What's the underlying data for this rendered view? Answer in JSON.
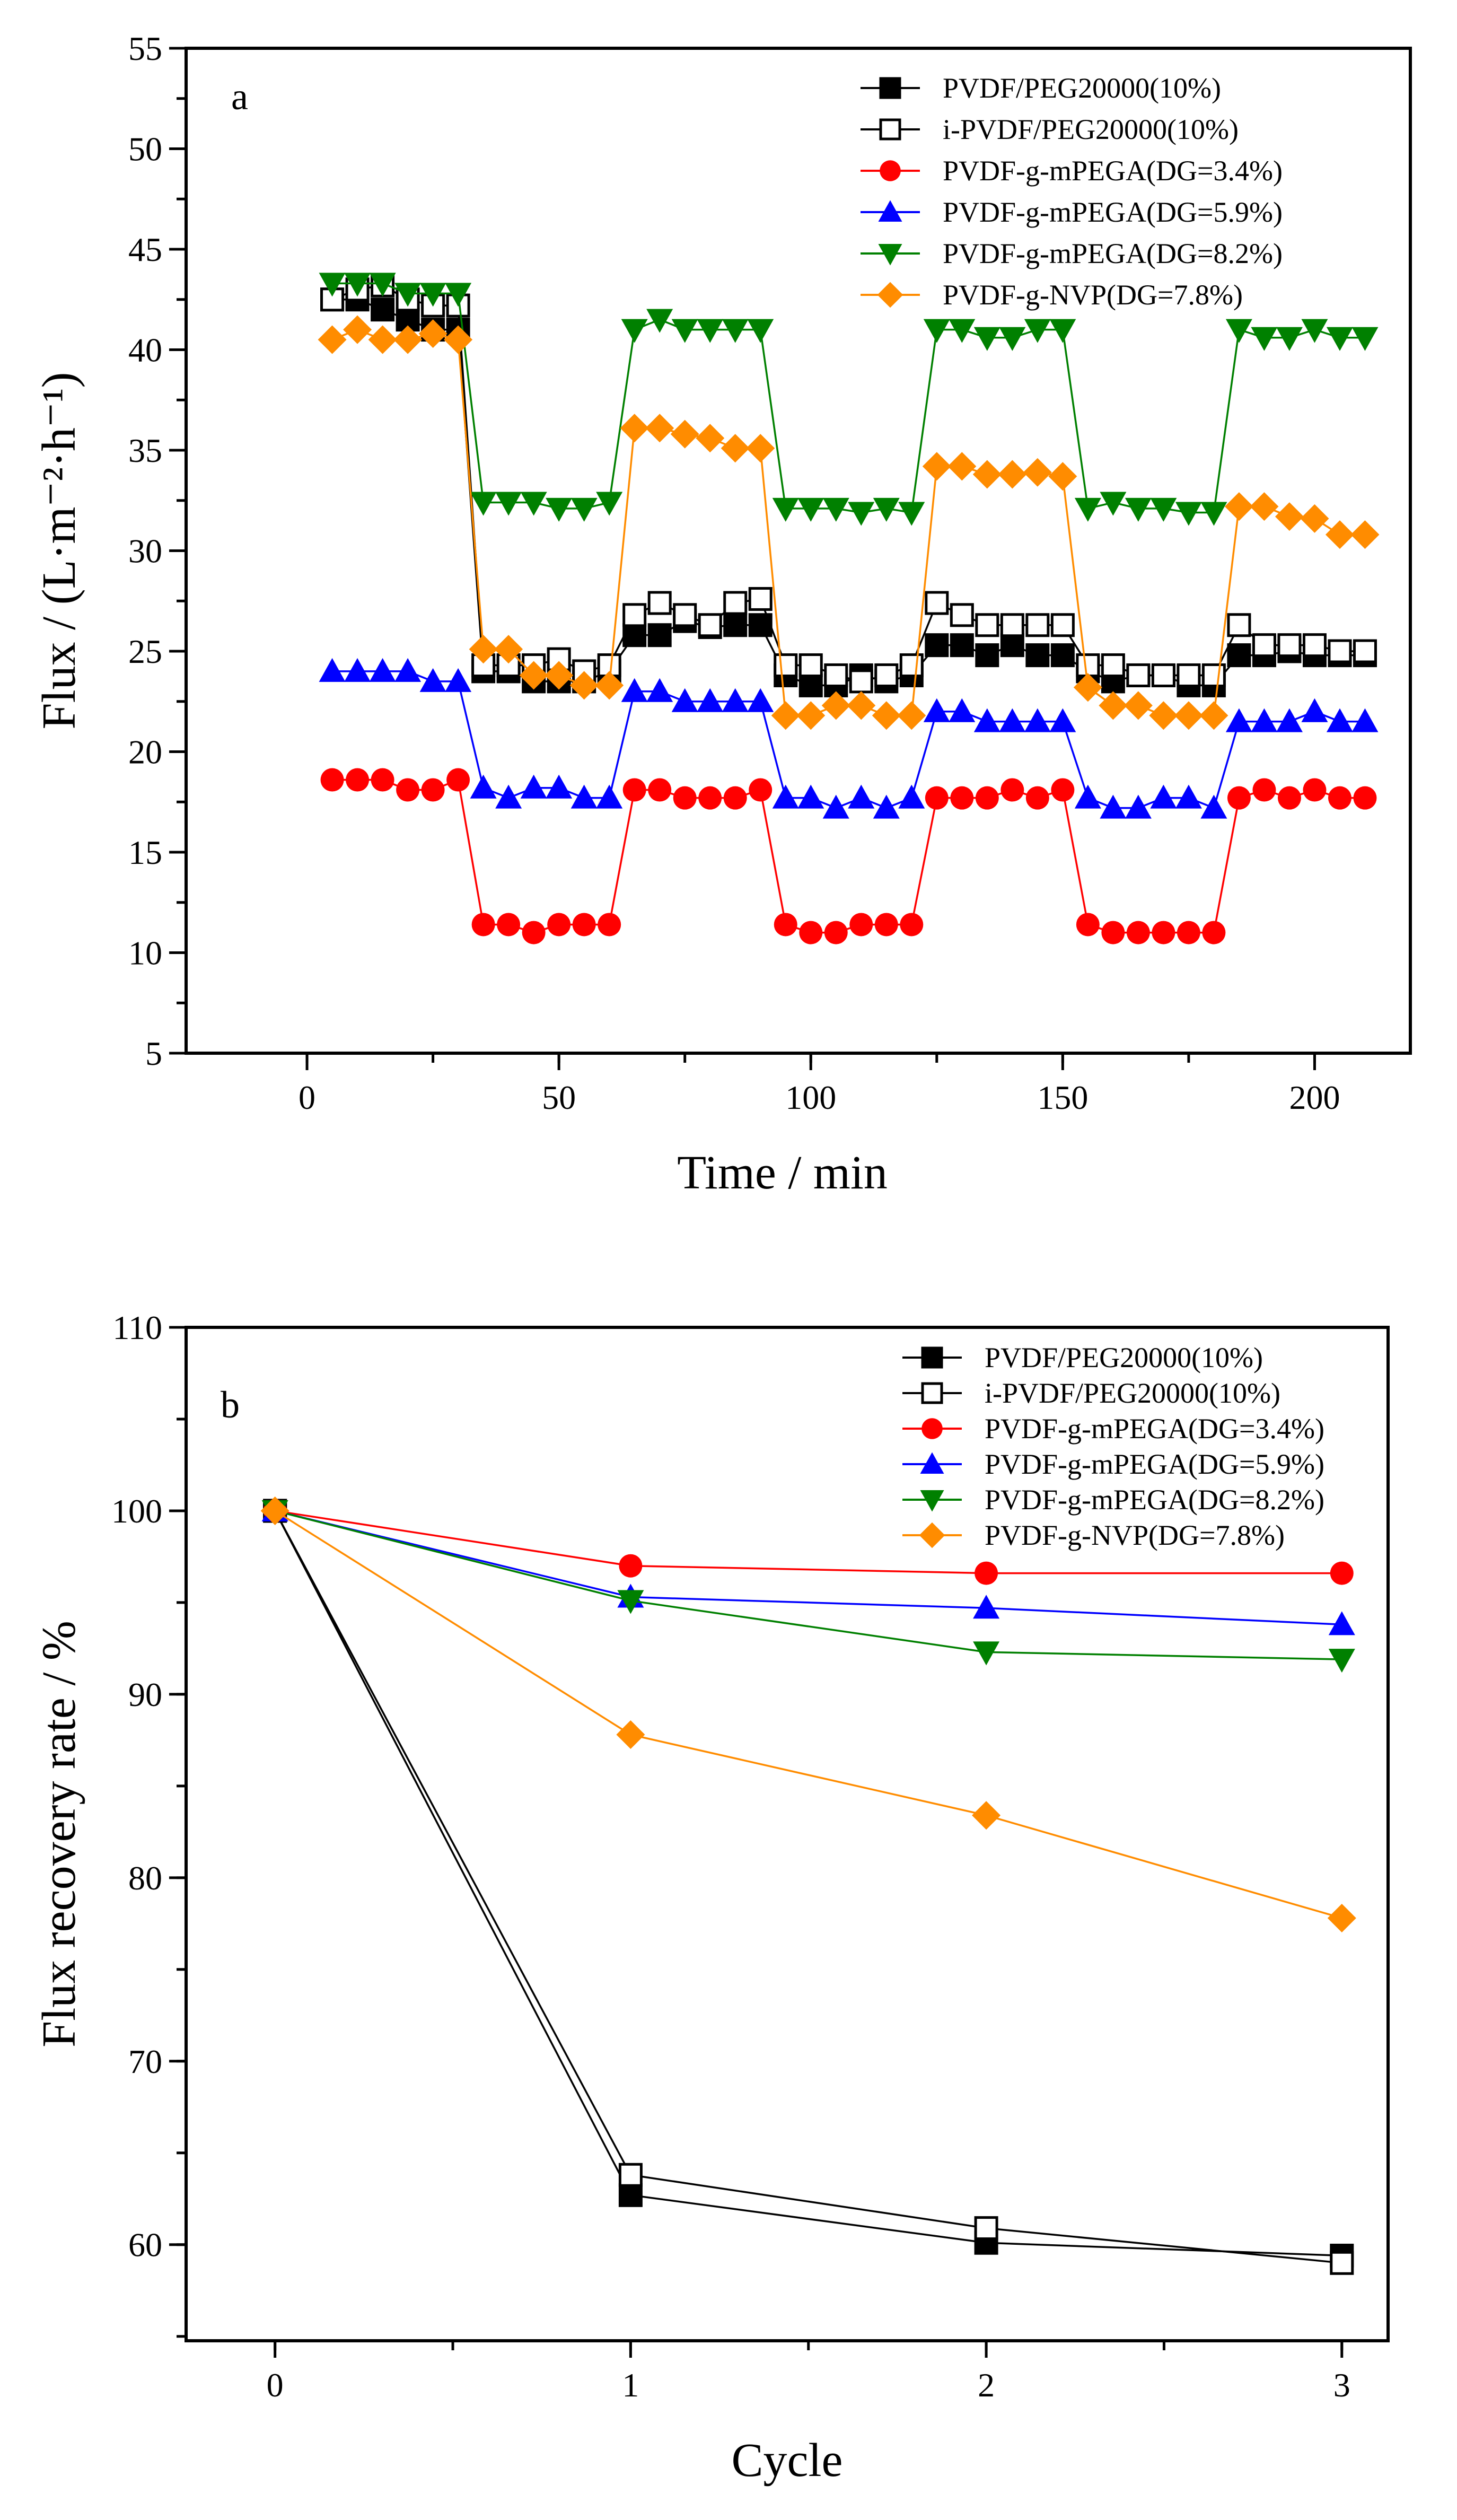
{
  "colors": {
    "black": "#000000",
    "red": "#ff0000",
    "blue": "#0000ff",
    "green": "#008000",
    "orange": "#ff8c00"
  },
  "chart_data": [
    {
      "type": "line",
      "panel_label": "a",
      "xlabel": "Time / min",
      "ylabel": "Flux / (L·m⁻²·h⁻¹)",
      "xlim": [
        -24,
        219
      ],
      "ylim": [
        5,
        55
      ],
      "xticks": [
        0,
        50,
        100,
        150,
        200
      ],
      "yticks": [
        5,
        10,
        15,
        20,
        25,
        30,
        35,
        40,
        45,
        50,
        55
      ],
      "x_minor_step": 25,
      "y_minor_step": 2.5,
      "legend_position": "top-right",
      "x": [
        5,
        10,
        15,
        20,
        25,
        30,
        35,
        40,
        45,
        50,
        55,
        60,
        65,
        70,
        75,
        80,
        85,
        90,
        95,
        100,
        105,
        110,
        115,
        120,
        125,
        130,
        135,
        140,
        145,
        150,
        155,
        160,
        165,
        170,
        175,
        180,
        185,
        190,
        195,
        200,
        205,
        210
      ],
      "series": [
        {
          "name": "PVDF/PEG20000(10%)",
          "color": "#000000",
          "marker": "square-filled",
          "values": [
            42.5,
            42.5,
            42,
            41.5,
            41,
            41,
            24,
            24,
            23.5,
            23.5,
            23.5,
            24,
            25.8,
            25.8,
            26.5,
            26.2,
            26.3,
            26.3,
            23.8,
            23.3,
            23.3,
            23.8,
            23.5,
            23.8,
            25.3,
            25.3,
            24.8,
            25.3,
            24.8,
            24.8,
            24,
            23.5,
            23.8,
            23.8,
            23.3,
            23.3,
            24.8,
            24.8,
            25,
            24.8,
            24.8,
            24.8
          ]
        },
        {
          "name": "i-PVDF/PEG20000(10%)",
          "color": "#000000",
          "marker": "square-open",
          "values": [
            42.5,
            43,
            43.2,
            42.5,
            42.2,
            42.2,
            24.3,
            24.3,
            24.3,
            24.6,
            24,
            24.3,
            26.8,
            27.4,
            26.8,
            26.3,
            27.4,
            27.6,
            24.3,
            24.3,
            23.8,
            23.5,
            23.8,
            24.3,
            27.4,
            26.8,
            26.3,
            26.3,
            26.3,
            26.3,
            24.3,
            24.3,
            23.8,
            23.8,
            23.8,
            23.8,
            26.3,
            25.3,
            25.3,
            25.3,
            25,
            25
          ]
        },
        {
          "name": "PVDF-g-mPEGA(DG=3.4%)",
          "color": "#ff0000",
          "marker": "circle",
          "values": [
            18.6,
            18.6,
            18.6,
            18.1,
            18.1,
            18.6,
            11.4,
            11.4,
            11,
            11.4,
            11.4,
            11.4,
            18.1,
            18.1,
            17.7,
            17.7,
            17.7,
            18.1,
            11.4,
            11,
            11,
            11.4,
            11.4,
            11.4,
            17.7,
            17.7,
            17.7,
            18.1,
            17.7,
            18.1,
            11.4,
            11,
            11,
            11,
            11,
            11,
            17.7,
            18.1,
            17.7,
            18.1,
            17.7,
            17.7
          ]
        },
        {
          "name": "PVDF-g-mPEGA(DG=5.9%)",
          "color": "#0000ff",
          "marker": "triangle-up",
          "values": [
            24,
            24,
            24,
            24,
            23.5,
            23.5,
            18.2,
            17.7,
            18.2,
            18.2,
            17.7,
            17.7,
            23,
            23,
            22.5,
            22.5,
            22.5,
            22.5,
            17.7,
            17.7,
            17.2,
            17.7,
            17.2,
            17.7,
            22,
            22,
            21.5,
            21.5,
            21.5,
            21.5,
            17.7,
            17.2,
            17.2,
            17.7,
            17.7,
            17.2,
            21.5,
            21.5,
            21.5,
            22,
            21.5,
            21.5
          ]
        },
        {
          "name": "PVDF-g-mPEGA(DG=8.2%)",
          "color": "#008000",
          "marker": "triangle-down",
          "values": [
            43.3,
            43.3,
            43.3,
            42.8,
            42.8,
            42.8,
            32.4,
            32.4,
            32.4,
            32.1,
            32.1,
            32.4,
            41,
            41.5,
            41,
            41,
            41,
            41,
            32.1,
            32.1,
            32.1,
            31.9,
            32.1,
            31.9,
            41,
            41,
            40.6,
            40.6,
            41,
            41,
            32.1,
            32.4,
            32.1,
            32.1,
            31.9,
            31.9,
            41,
            40.6,
            40.6,
            41,
            40.6,
            40.6
          ]
        },
        {
          "name": "PVDF-g-NVP(DG=7.8%)",
          "color": "#ff8c00",
          "marker": "diamond",
          "values": [
            40.5,
            41,
            40.5,
            40.5,
            40.8,
            40.5,
            25.1,
            25.1,
            23.8,
            23.8,
            23.3,
            23.3,
            36.1,
            36.1,
            35.8,
            35.6,
            35.1,
            35.1,
            21.8,
            21.8,
            22.3,
            22.3,
            21.8,
            21.8,
            34.2,
            34.2,
            33.8,
            33.8,
            33.9,
            33.7,
            23.2,
            22.3,
            22.3,
            21.8,
            21.8,
            21.8,
            32.2,
            32.2,
            31.7,
            31.6,
            30.8,
            30.8
          ]
        }
      ]
    },
    {
      "type": "line",
      "panel_label": "b",
      "xlabel": "Cycle",
      "ylabel": "Flux recovery rate / %",
      "xlim": [
        -0.25,
        3.13
      ],
      "ylim": [
        54.76,
        110
      ],
      "xticks": [
        0,
        1,
        2,
        3
      ],
      "yticks": [
        60,
        70,
        80,
        90,
        100,
        110
      ],
      "x_minor_step": 0.5,
      "y_minor_step": 5,
      "legend_position": "top-right",
      "x": [
        0,
        1,
        2,
        3
      ],
      "series": [
        {
          "name": "PVDF/PEG20000(10%)",
          "color": "#000000",
          "marker": "square-filled",
          "values": [
            100,
            62.7,
            60.1,
            59.4
          ]
        },
        {
          "name": "i-PVDF/PEG20000(10%)",
          "color": "#000000",
          "marker": "square-open",
          "values": [
            100,
            63.8,
            60.9,
            59.0
          ]
        },
        {
          "name": "PVDF-g-mPEGA(DG=3.4%)",
          "color": "#ff0000",
          "marker": "circle",
          "values": [
            100,
            97.0,
            96.6,
            96.6
          ]
        },
        {
          "name": "PVDF-g-mPEGA(DG=5.9%)",
          "color": "#0000ff",
          "marker": "triangle-up",
          "values": [
            100,
            95.3,
            94.7,
            93.8
          ]
        },
        {
          "name": "PVDF-g-mPEGA(DG=8.2%)",
          "color": "#008000",
          "marker": "triangle-down",
          "values": [
            100,
            95.1,
            92.3,
            91.9
          ]
        },
        {
          "name": "PVDF-g-NVP(DG=7.8%)",
          "color": "#ff8c00",
          "marker": "diamond",
          "values": [
            100,
            87.8,
            83.4,
            77.8
          ]
        }
      ]
    }
  ]
}
